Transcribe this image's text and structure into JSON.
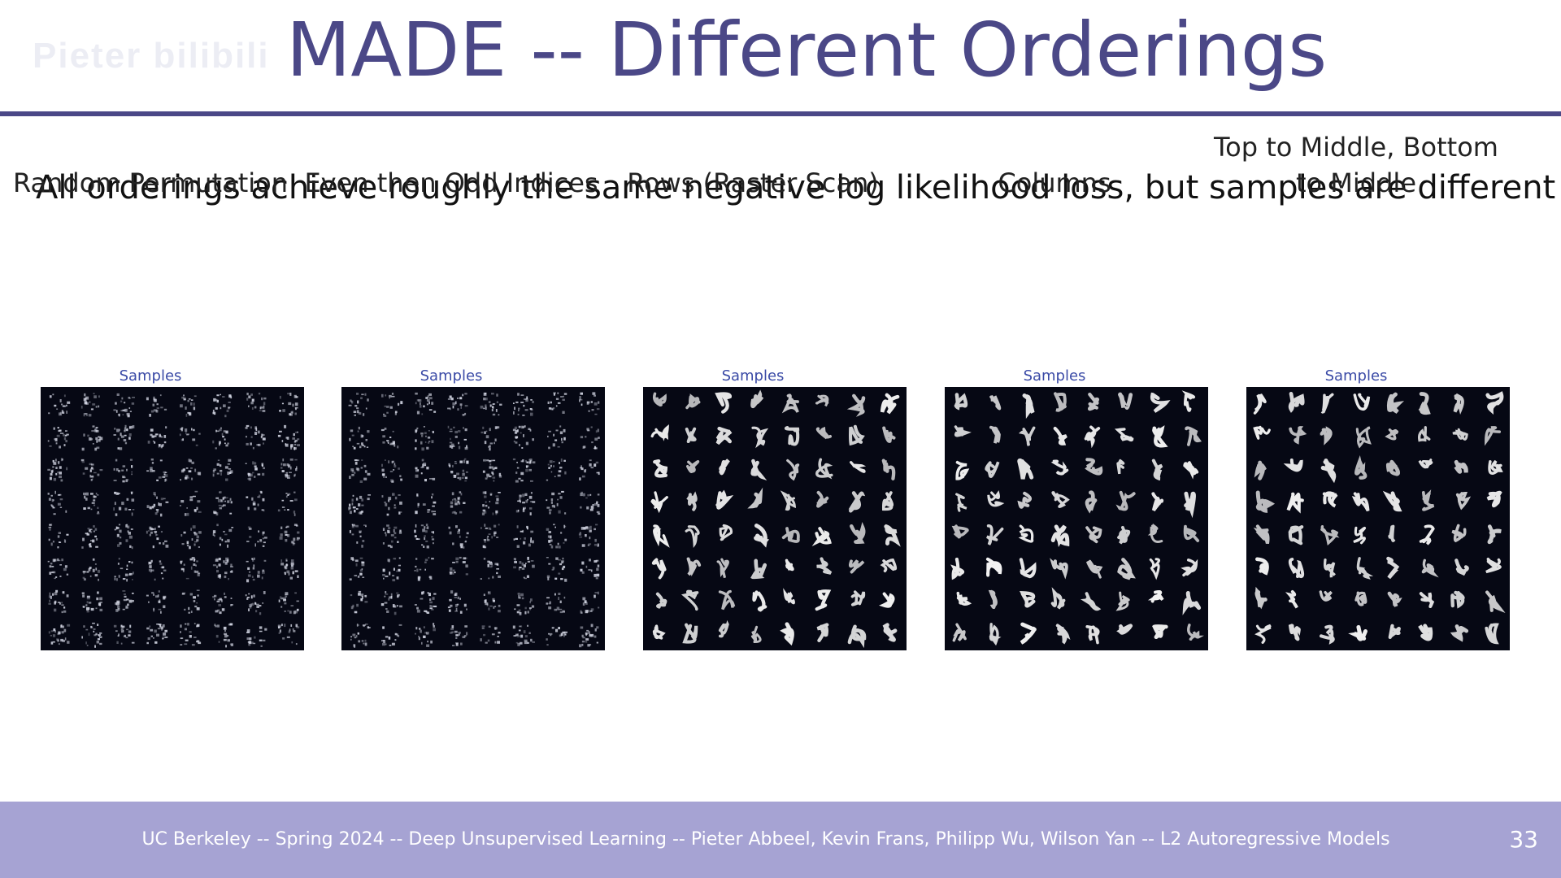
{
  "slide": {
    "title": "MADE -- Different Orderings",
    "subtitle": "All orderings achieve roughly the same negative log likelihood loss, but samples are different",
    "watermark": "Pieter bilibili"
  },
  "panels": [
    {
      "title": "Random Permutation",
      "label": "Samples",
      "style": "noisy"
    },
    {
      "title": "Even then Odd Indices",
      "label": "Samples",
      "style": "noisy"
    },
    {
      "title": "Rows (Raster Scan)",
      "label": "Samples",
      "style": "digits"
    },
    {
      "title": "Columns",
      "label": "Samples",
      "style": "digits"
    },
    {
      "title": "Top to Middle, Bottom to Middle",
      "label": "Samples",
      "style": "digits"
    }
  ],
  "footer": {
    "text": "UC Berkeley -- Spring 2024 -- Deep Unsupervised Learning -- Pieter Abbeel, Kevin Frans, Philipp Wu, Wilson Yan -- L2 Autoregressive Models",
    "page_number": "33"
  },
  "colors": {
    "title": "#4b4887",
    "footer_bg": "#a6a3d3",
    "grid_bg": "#060814",
    "sample_label": "#3a4aa6"
  }
}
